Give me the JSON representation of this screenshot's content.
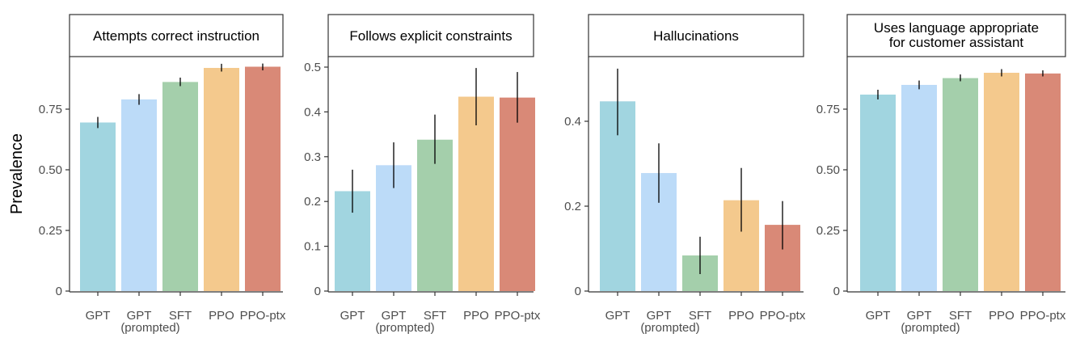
{
  "ylabel": "Prevalence",
  "colors": {
    "GPT": "#a1d5e0",
    "GPT (prompted)": "#bcdbf8",
    "SFT": "#a4cfab",
    "PPO": "#f4c98d",
    "PPO-ptx": "#d98977"
  },
  "chart_data": [
    {
      "type": "bar",
      "title": "Attempts correct instruction",
      "ylabel": "Prevalence",
      "categories": [
        "GPT",
        "GPT (prompted)",
        "SFT",
        "PPO",
        "PPO-ptx"
      ],
      "values": [
        0.695,
        0.79,
        0.862,
        0.92,
        0.925
      ],
      "error": [
        [
          0.672,
          0.718
        ],
        [
          0.768,
          0.812
        ],
        [
          0.845,
          0.88
        ],
        [
          0.905,
          0.937
        ],
        [
          0.91,
          0.938
        ]
      ],
      "ylim": [
        0,
        0.925
      ],
      "yticks": [
        0,
        0.25,
        0.5,
        0.75
      ],
      "ytick_labels": [
        "0",
        "0.25",
        "0.50",
        "0.75"
      ],
      "grid": false
    },
    {
      "type": "bar",
      "title": "Follows explicit constraints",
      "ylabel": "",
      "categories": [
        "GPT",
        "GPT (prompted)",
        "SFT",
        "PPO",
        "PPO-ptx"
      ],
      "values": [
        0.223,
        0.281,
        0.338,
        0.434,
        0.432
      ],
      "error": [
        [
          0.175,
          0.271
        ],
        [
          0.23,
          0.332
        ],
        [
          0.284,
          0.394
        ],
        [
          0.37,
          0.498
        ],
        [
          0.376,
          0.489
        ]
      ],
      "ylim": [
        0,
        0.5
      ],
      "yticks": [
        0,
        0.1,
        0.2,
        0.3,
        0.4,
        0.5
      ],
      "ytick_labels": [
        "0",
        "0.1",
        "0.2",
        "0.3",
        "0.4",
        "0.5"
      ],
      "grid": false
    },
    {
      "type": "bar",
      "title": "Hallucinations",
      "ylabel": "",
      "categories": [
        "GPT",
        "GPT (prompted)",
        "SFT",
        "PPO",
        "PPO-ptx"
      ],
      "values": [
        0.447,
        0.278,
        0.084,
        0.214,
        0.156
      ],
      "error": [
        [
          0.367,
          0.524
        ],
        [
          0.208,
          0.348
        ],
        [
          0.04,
          0.128
        ],
        [
          0.14,
          0.29
        ],
        [
          0.098,
          0.212
        ]
      ],
      "ylim": [
        0,
        0.524
      ],
      "yticks": [
        0,
        0.2,
        0.4
      ],
      "ytick_labels": [
        "0",
        "0.2",
        "0.4"
      ],
      "grid": false
    },
    {
      "type": "bar",
      "title": "Uses language appropriate for customer assistant",
      "ylabel": "",
      "categories": [
        "GPT",
        "GPT (prompted)",
        "SFT",
        "PPO",
        "PPO-ptx"
      ],
      "values": [
        0.81,
        0.85,
        0.878,
        0.9,
        0.897
      ],
      "error": [
        [
          0.79,
          0.83
        ],
        [
          0.832,
          0.868
        ],
        [
          0.865,
          0.893
        ],
        [
          0.885,
          0.915
        ],
        [
          0.885,
          0.91
        ]
      ],
      "ylim": [
        0,
        0.915
      ],
      "yticks": [
        0,
        0.25,
        0.5,
        0.75
      ],
      "ytick_labels": [
        "0",
        "0.25",
        "0.50",
        "0.75"
      ],
      "grid": false
    }
  ]
}
